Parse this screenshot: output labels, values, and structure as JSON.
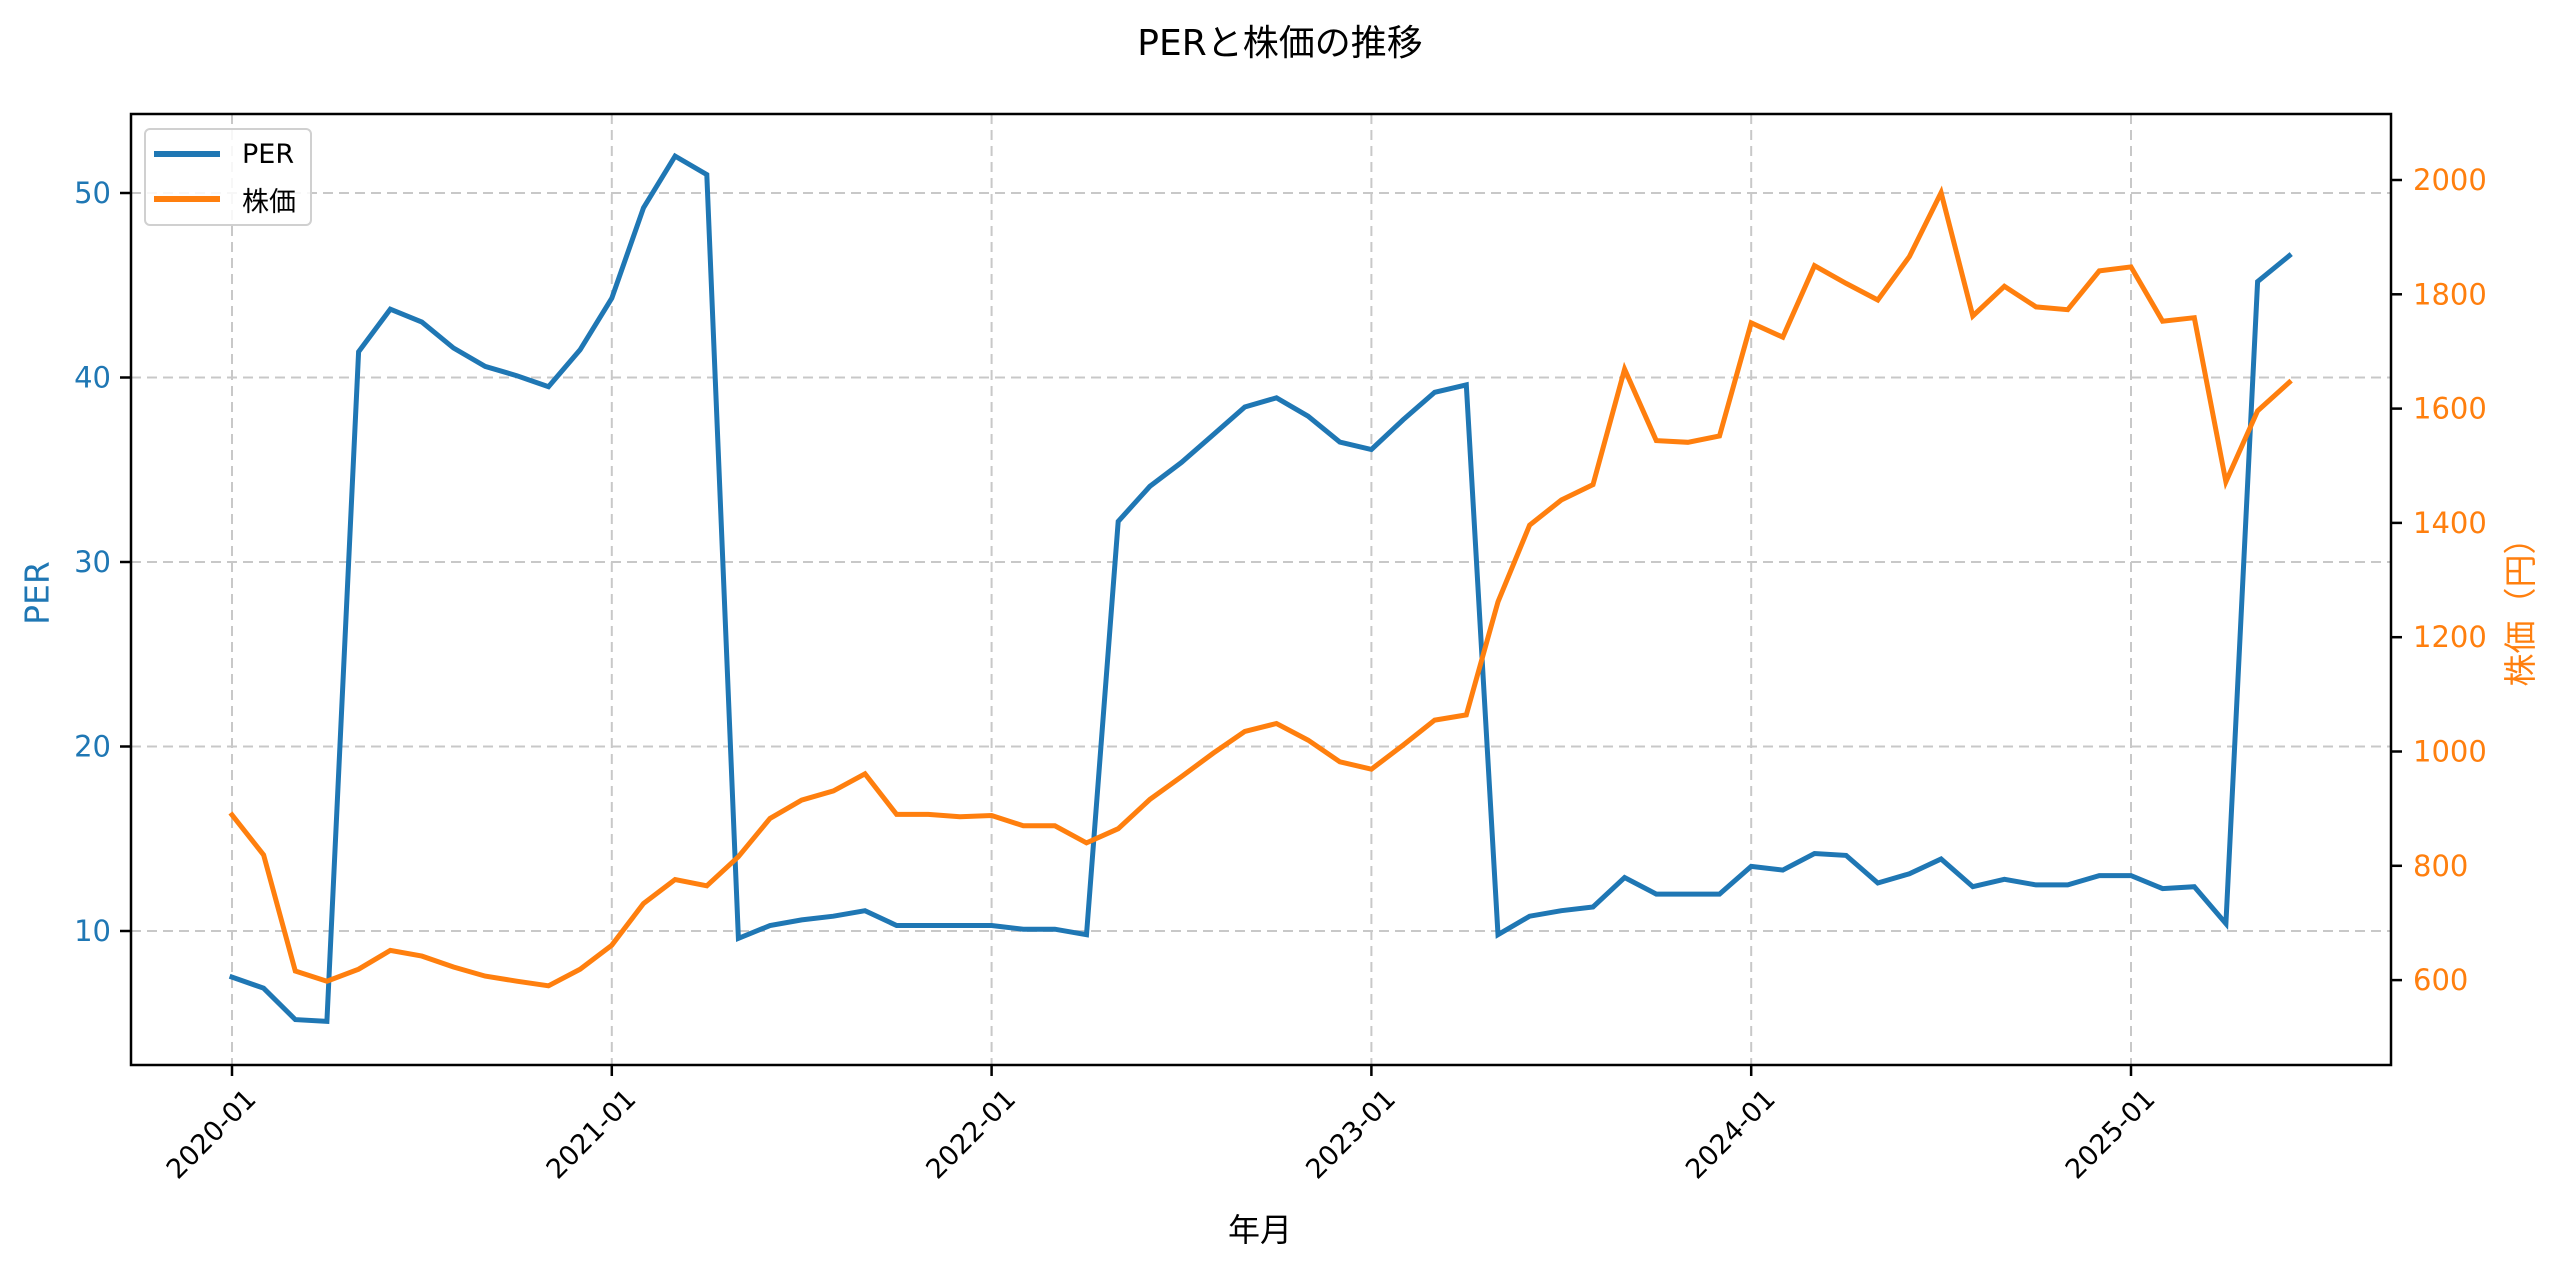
{
  "title": "PERと株価の推移",
  "legend": {
    "items": [
      {
        "label": "PER",
        "color": "#1f77b4"
      },
      {
        "label": "株価",
        "color": "#ff7f0e"
      }
    ]
  },
  "axes": {
    "xlabel": "年月",
    "ylabel_left": "PER",
    "ylabel_right": "株価（円）",
    "x_ticks": [
      "2020-01",
      "2021-01",
      "2022-01",
      "2023-01",
      "2024-01",
      "2025-01"
    ],
    "y_left_ticks": [
      10,
      20,
      30,
      40,
      50
    ],
    "y_right_ticks": [
      600,
      800,
      1000,
      1200,
      1400,
      1600,
      1800,
      2000
    ]
  },
  "colors": {
    "per": "#1f77b4",
    "price": "#ff7f0e",
    "grid": "#c8c8c8",
    "axis": "#000000"
  },
  "chart_data": {
    "type": "line",
    "title": "PERと株価の推移",
    "xlabel": "年月",
    "ylabel": "PER",
    "ylabel_secondary": "株価（円）",
    "x_tick_labels": [
      "2020-01",
      "2021-01",
      "2022-01",
      "2023-01",
      "2024-01",
      "2025-01"
    ],
    "x": [
      "2020-01",
      "2020-02",
      "2020-03",
      "2020-04",
      "2020-05",
      "2020-06",
      "2020-07",
      "2020-08",
      "2020-09",
      "2020-10",
      "2020-11",
      "2020-12",
      "2021-01",
      "2021-02",
      "2021-03",
      "2021-04",
      "2021-05",
      "2021-06",
      "2021-07",
      "2021-08",
      "2021-09",
      "2021-10",
      "2021-11",
      "2021-12",
      "2022-01",
      "2022-02",
      "2022-03",
      "2022-04",
      "2022-05",
      "2022-06",
      "2022-07",
      "2022-08",
      "2022-09",
      "2022-10",
      "2022-11",
      "2022-12",
      "2023-01",
      "2023-02",
      "2023-03",
      "2023-04",
      "2023-05",
      "2023-06",
      "2023-07",
      "2023-08",
      "2023-09",
      "2023-10",
      "2023-11",
      "2023-12",
      "2024-01",
      "2024-02",
      "2024-03",
      "2024-04",
      "2024-05",
      "2024-06",
      "2024-07",
      "2024-08",
      "2024-09",
      "2024-10",
      "2024-11",
      "2024-12",
      "2025-01",
      "2025-02",
      "2025-03",
      "2025-04",
      "2025-05",
      "2025-06"
    ],
    "series": [
      {
        "name": "PER",
        "axis": "left",
        "color": "#1f77b4",
        "values": [
          7.5,
          6.9,
          5.2,
          5.1,
          41.4,
          43.7,
          43.0,
          41.6,
          40.6,
          40.1,
          39.5,
          41.5,
          44.3,
          49.2,
          52.0,
          51.0,
          9.6,
          10.3,
          10.6,
          10.8,
          11.1,
          10.3,
          10.3,
          10.3,
          10.3,
          10.1,
          10.1,
          9.8,
          32.2,
          34.1,
          35.4,
          36.9,
          38.4,
          38.9,
          37.9,
          36.5,
          36.1,
          37.7,
          39.2,
          39.6,
          9.8,
          10.8,
          11.1,
          11.3,
          12.9,
          12.0,
          12.0,
          12.0,
          13.5,
          13.3,
          14.2,
          14.1,
          12.6,
          13.1,
          13.9,
          12.4,
          12.8,
          12.5,
          12.5,
          13.0,
          13.0,
          12.3,
          12.4,
          10.4,
          45.2,
          46.6
        ]
      },
      {
        "name": "株価",
        "axis": "right",
        "color": "#ff7f0e",
        "values": [
          889,
          819,
          616,
          598,
          619,
          652,
          642,
          623,
          607,
          598,
          590,
          619,
          661,
          734,
          776,
          765,
          816,
          883,
          915,
          931,
          961,
          890,
          890,
          886,
          888,
          870,
          870,
          840,
          865,
          916,
          956,
          997,
          1035,
          1049,
          1020,
          982,
          969,
          1011,
          1055,
          1064,
          1262,
          1396,
          1440,
          1467,
          1669,
          1544,
          1541,
          1552,
          1750,
          1725,
          1850,
          1819,
          1790,
          1866,
          1978,
          1762,
          1814,
          1778,
          1773,
          1841,
          1848,
          1753,
          1759,
          1472,
          1596,
          1646
        ]
      }
    ],
    "ylim": [
      2.5,
      54.5
    ],
    "ylim_secondary": [
      450,
      2110
    ],
    "grid": true,
    "grid_style": "dashed",
    "legend_position": "upper left"
  }
}
